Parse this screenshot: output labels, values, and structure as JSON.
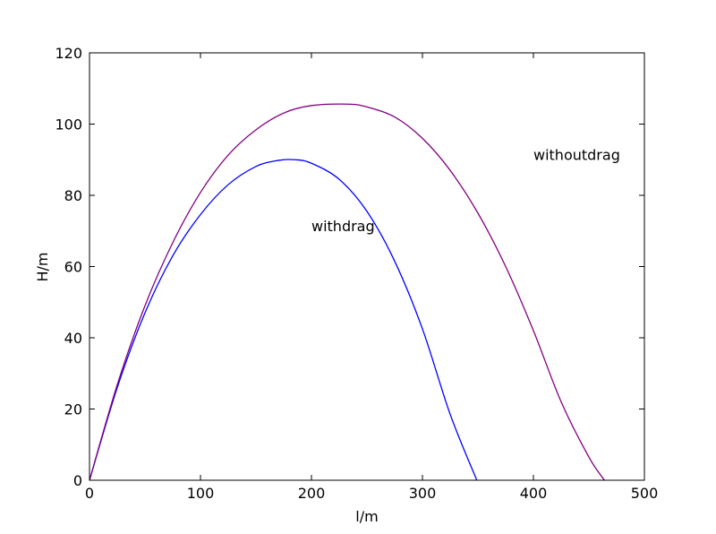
{
  "chart_data": {
    "type": "line",
    "xlabel": "l/m",
    "ylabel": "H/m",
    "xlim": [
      0,
      500
    ],
    "ylim": [
      0,
      120
    ],
    "xticks": [
      0,
      100,
      200,
      300,
      400,
      500
    ],
    "yticks": [
      0,
      20,
      40,
      60,
      80,
      100,
      120
    ],
    "grid": false,
    "series": [
      {
        "color": "#0000ff",
        "x": [
          0,
          25,
          50,
          75,
          100,
          125,
          150,
          170,
          185,
          200,
          225,
          250,
          275,
          300,
          325,
          349
        ],
        "y": [
          0,
          26.0,
          47.0,
          63.0,
          74.6,
          83.0,
          88.1,
          89.8,
          90.0,
          89.0,
          84.5,
          75.5,
          61.5,
          42.5,
          18.5,
          0
        ]
      },
      {
        "color": "#800080",
        "x": [
          0,
          25,
          50,
          75,
          100,
          125,
          150,
          175,
          200,
          233,
          250,
          275,
          300,
          325,
          350,
          375,
          400,
          425,
          450,
          464
        ],
        "y": [
          0,
          26.8,
          49.0,
          66.7,
          80.8,
          91.3,
          98.4,
          103.1,
          105.2,
          105.6,
          104.8,
          102.0,
          96.0,
          87.0,
          75.0,
          60.0,
          42.0,
          22.0,
          6.5,
          0
        ]
      }
    ],
    "annotations": [
      {
        "text": "withdrag",
        "x": 200,
        "y": 70
      },
      {
        "text": "withoutdrag",
        "x": 400,
        "y": 90
      }
    ]
  }
}
